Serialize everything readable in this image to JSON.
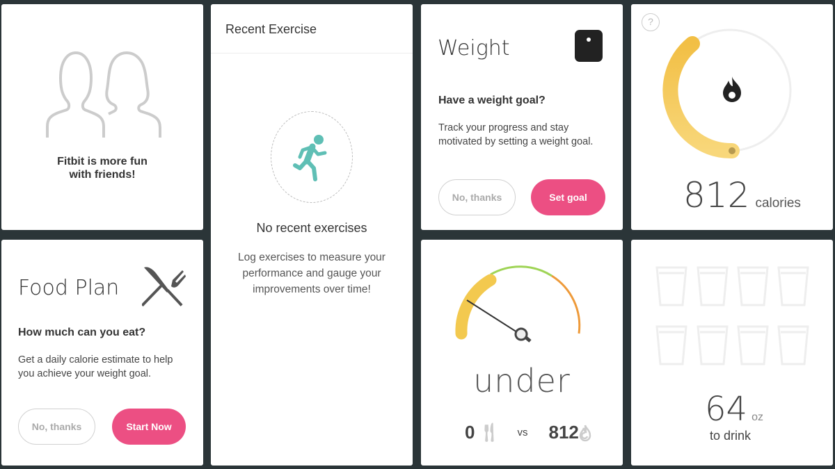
{
  "friends": {
    "text_line1": "Fitbit is more fun",
    "text_line2": "with friends!",
    "icon": "friends-icon"
  },
  "food_plan": {
    "title": "Food Plan",
    "question": "How much can you eat?",
    "desc_line1": "Get a daily calorie estimate to help",
    "desc_line2": "you achieve your weight goal.",
    "decline_label": "No, thanks",
    "accept_label": "Start Now",
    "icon": "fork-knife-icon"
  },
  "recent_exercise": {
    "title": "Recent Exercise",
    "empty_title": "No recent exercises",
    "desc_line1": "Log exercises to measure your",
    "desc_line2": "performance and gauge your",
    "desc_line3": "improvements over time!",
    "icon": "running-person-icon"
  },
  "weight": {
    "title": "Weight",
    "question": "Have a weight goal?",
    "desc_line1": "Track your progress and stay",
    "desc_line2": "motivated by setting a weight goal.",
    "decline_label": "No, thanks",
    "accept_label": "Set goal",
    "icon": "scale-icon"
  },
  "calorie_balance": {
    "status": "under",
    "food_value": "0",
    "vs_label": "vs",
    "burned_value": "812"
  },
  "calories_burned": {
    "value": "812",
    "unit": "calories",
    "help_label": "?",
    "progress_fraction": 0.37
  },
  "water": {
    "value": "64",
    "unit": "oz",
    "label": "to drink",
    "glasses_total": 8,
    "glasses_filled": 0
  },
  "colors": {
    "background": "#2b3538",
    "accent_pink": "#ec4f83",
    "teal": "#5fbfb5",
    "yellow": "#f3c94f",
    "green": "#9fd456",
    "orange": "#ee9a3a"
  }
}
